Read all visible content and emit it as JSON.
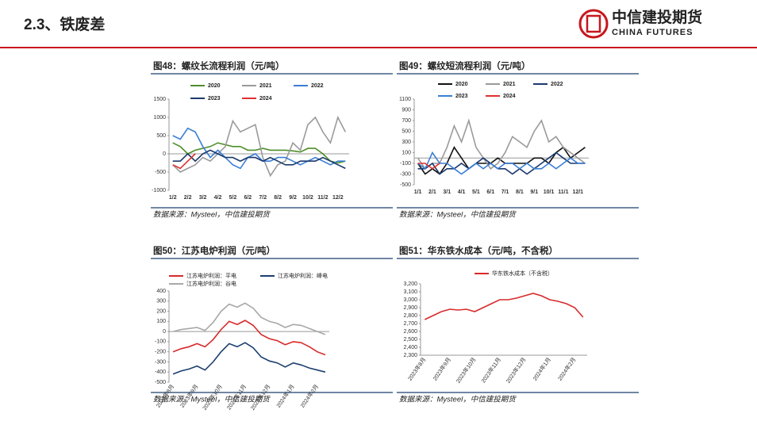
{
  "header": {
    "title": "2.3、铁废差",
    "logo_cn": "中信建投期货",
    "logo_en": "CHINA FUTURES"
  },
  "chart_data": [
    {
      "type": "line",
      "title": "图48：螺纹长流程利润（元/吨）",
      "source": "数据来源：Mysteel，中信建投期货",
      "categories": [
        "1/2",
        null,
        "2/2",
        null,
        "3/2",
        null,
        "4/2",
        null,
        "5/2",
        null,
        "6/2",
        null,
        "7/2",
        null,
        "8/2",
        null,
        "9/2",
        null,
        "10/2",
        null,
        "11/2",
        null,
        "12/2",
        null
      ],
      "ylim": [
        -1000,
        1500
      ],
      "yticks": [
        -1000,
        -500,
        0,
        500,
        1000,
        1500
      ],
      "grid": false,
      "series": [
        {
          "name": "2020",
          "color": "#4e8f2a",
          "values": [
            300,
            200,
            0,
            100,
            150,
            200,
            300,
            250,
            200,
            200,
            100,
            100,
            150,
            100,
            100,
            100,
            80,
            50,
            150,
            150,
            0,
            -200,
            -250,
            -200
          ]
        },
        {
          "name": "2021",
          "color": "#9a9a9a",
          "values": [
            -300,
            -500,
            -400,
            -300,
            -100,
            -200,
            0,
            200,
            900,
            600,
            700,
            800,
            -100,
            -600,
            -300,
            -200,
            300,
            100,
            800,
            1000,
            600,
            300,
            1000,
            600
          ]
        },
        {
          "name": "2022",
          "color": "#3a7fd5",
          "values": [
            500,
            400,
            700,
            600,
            200,
            -100,
            100,
            -100,
            -300,
            -400,
            -100,
            0,
            -200,
            -200,
            -100,
            -100,
            -200,
            -300,
            -200,
            -100,
            -200,
            -300,
            -200,
            -200
          ]
        },
        {
          "name": "2023",
          "color": "#1c3a6e",
          "values": [
            -200,
            -200,
            0,
            -200,
            0,
            100,
            0,
            -100,
            -100,
            -200,
            -100,
            -100,
            -200,
            -100,
            -200,
            -300,
            -300,
            -200,
            -200,
            -200,
            -100,
            -200,
            -300,
            -400
          ]
        },
        {
          "name": "2024",
          "color": "#e03030",
          "values": [
            -300,
            -400,
            -200,
            0,
            null,
            null,
            null,
            null,
            null,
            null,
            null,
            null,
            null,
            null,
            null,
            null,
            null,
            null,
            null,
            null,
            null,
            null,
            null,
            null
          ]
        }
      ]
    },
    {
      "type": "line",
      "title": "图49：螺纹短流程利润（元/吨）",
      "source": "数据来源：Mysteel，中信建投期货",
      "categories": [
        "1/1",
        null,
        "2/1",
        null,
        "3/1",
        null,
        "4/1",
        null,
        "5/1",
        null,
        "6/1",
        null,
        "7/1",
        null,
        "8/1",
        null,
        "9/1",
        null,
        "10/1",
        null,
        "11/1",
        null,
        "12/1",
        null
      ],
      "ylim": [
        -500,
        1100
      ],
      "yticks": [
        -500,
        -300,
        -100,
        100,
        300,
        500,
        700,
        900,
        1100
      ],
      "grid": false,
      "series": [
        {
          "name": "2020",
          "color": "#111111",
          "values": [
            -100,
            -300,
            -200,
            -300,
            -100,
            200,
            0,
            -200,
            -100,
            -100,
            -100,
            0,
            -100,
            -100,
            -100,
            -100,
            0,
            0,
            -100,
            100,
            200,
            0,
            100,
            200
          ]
        },
        {
          "name": "2021",
          "color": "#9a9a9a",
          "values": [
            0,
            -200,
            -100,
            -100,
            200,
            600,
            300,
            700,
            200,
            0,
            -200,
            -100,
            100,
            400,
            300,
            200,
            500,
            700,
            300,
            400,
            200,
            100,
            0,
            -100
          ]
        },
        {
          "name": "2022",
          "color": "#1c3a6e",
          "values": [
            -200,
            -200,
            -100,
            -300,
            -200,
            -200,
            -100,
            -200,
            -100,
            0,
            -100,
            -200,
            -200,
            -300,
            -200,
            -300,
            -200,
            -100,
            0,
            100,
            0,
            -100,
            -100,
            -100
          ]
        },
        {
          "name": "2023",
          "color": "#3a7fd5",
          "values": [
            -100,
            -200,
            100,
            -100,
            -100,
            -200,
            -300,
            -200,
            -100,
            -200,
            -100,
            -200,
            -100,
            -100,
            -200,
            -100,
            -200,
            -200,
            -100,
            -200,
            -100,
            0,
            -100,
            -100
          ]
        },
        {
          "name": "2024",
          "color": "#e03030",
          "values": [
            -100,
            -100,
            -200,
            -100,
            null,
            null,
            null,
            null,
            null,
            null,
            null,
            null,
            null,
            null,
            null,
            null,
            null,
            null,
            null,
            null,
            null,
            null,
            null,
            null
          ]
        }
      ]
    },
    {
      "type": "line",
      "title": "图50：江苏电炉利润（元/吨）",
      "source": "数据来源：Mysteel，中信建投期货",
      "categories": [
        "2023年8月",
        null,
        null,
        "2023年9月",
        null,
        null,
        "2023年10月",
        null,
        null,
        "2023年11月",
        null,
        null,
        "2023年12月",
        null,
        null,
        "2024年1月",
        null,
        null,
        "2024年2月",
        null
      ],
      "ylim": [
        -500,
        400
      ],
      "yticks": [
        -500,
        -400,
        -300,
        -200,
        -100,
        0,
        100,
        200,
        300,
        400
      ],
      "grid": false,
      "series": [
        {
          "name": "江苏电炉利润：平电",
          "color": "#d82a2a",
          "values": [
            -200,
            -170,
            -150,
            -120,
            -150,
            -80,
            20,
            100,
            70,
            110,
            60,
            -30,
            -70,
            -90,
            -130,
            -100,
            -110,
            -150,
            -200,
            -230
          ]
        },
        {
          "name": "江苏电炉利润：峰电",
          "color": "#1c3f6e",
          "values": [
            -420,
            -390,
            -370,
            -340,
            -380,
            -300,
            -200,
            -120,
            -150,
            -110,
            -160,
            -250,
            -290,
            -310,
            -350,
            -310,
            -330,
            -360,
            -380,
            -400
          ]
        },
        {
          "name": "江苏电炉利润：谷电",
          "color": "#a8a8a8",
          "values": [
            0,
            20,
            30,
            40,
            10,
            90,
            200,
            270,
            240,
            280,
            230,
            140,
            100,
            80,
            40,
            70,
            60,
            30,
            0,
            -30
          ]
        }
      ]
    },
    {
      "type": "line",
      "title": "图51：华东铁水成本（元/吨，不含税）",
      "source": "数据来源：Mysteel，中信建投期货",
      "categories": [
        "2023年8月",
        null,
        null,
        "2023年9月",
        null,
        null,
        "2023年10月",
        null,
        null,
        "2023年11月",
        null,
        null,
        "2023年12月",
        null,
        null,
        "2024年1月",
        null,
        null,
        "2024年2月",
        null
      ],
      "ylim": [
        2300,
        3200
      ],
      "yticks": [
        {
          "value": 2300,
          "label": "2,300"
        },
        {
          "value": 2400,
          "label": "2,400"
        },
        {
          "value": 2500,
          "label": "2,500"
        },
        {
          "value": 2600,
          "label": "2,600"
        },
        {
          "value": 2700,
          "label": "2,700"
        },
        {
          "value": 2800,
          "label": "2,800"
        },
        {
          "value": 2900,
          "label": "2,900"
        },
        {
          "value": 3000,
          "label": "3,000"
        },
        {
          "value": 3100,
          "label": "3,100"
        },
        {
          "value": 3200,
          "label": "3,200"
        }
      ],
      "grid": false,
      "series": [
        {
          "name": "华东铁水成本（不含税）",
          "color": "#d82a2a",
          "values": [
            2750,
            2800,
            2850,
            2880,
            2870,
            2880,
            2850,
            2900,
            2950,
            3000,
            3000,
            3020,
            3050,
            3080,
            3050,
            3000,
            2980,
            2950,
            2900,
            2780
          ]
        }
      ]
    }
  ]
}
